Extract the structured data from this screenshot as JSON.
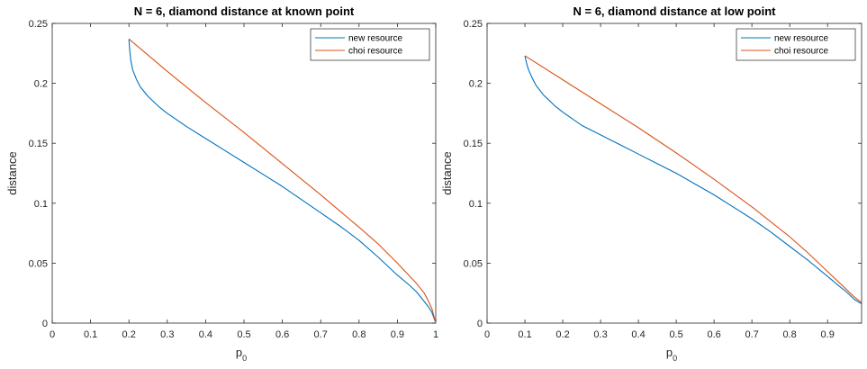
{
  "chart_data": [
    {
      "type": "line",
      "title": "N = 6, diamond distance at known point",
      "xlabel": "p",
      "xlabel_sub": "0",
      "ylabel": "distance",
      "xlim": [
        0,
        1
      ],
      "ylim": [
        0,
        0.25
      ],
      "xticks": [
        0,
        0.1,
        0.2,
        0.3,
        0.4,
        0.5,
        0.6,
        0.7,
        0.8,
        0.9,
        1
      ],
      "xtick_labels": [
        "0",
        "0.1",
        "0.2",
        "0.3",
        "0.4",
        "0.5",
        "0.6",
        "0.7",
        "0.8",
        "0.9",
        "1"
      ],
      "yticks": [
        0,
        0.05,
        0.1,
        0.15,
        0.2,
        0.25
      ],
      "ytick_labels": [
        "0",
        "0.05",
        "0.1",
        "0.15",
        "0.2",
        "0.25"
      ],
      "grid": false,
      "legend_position": "top-right",
      "series": [
        {
          "name": "new resource",
          "color": "#0072BD",
          "x": [
            0.2,
            0.202,
            0.205,
            0.21,
            0.22,
            0.23,
            0.25,
            0.28,
            0.3,
            0.35,
            0.4,
            0.45,
            0.5,
            0.55,
            0.6,
            0.65,
            0.7,
            0.75,
            0.8,
            0.85,
            0.9,
            0.93,
            0.95,
            0.97,
            0.98,
            0.99,
            1.0
          ],
          "y": [
            0.237,
            0.228,
            0.219,
            0.211,
            0.203,
            0.197,
            0.189,
            0.18,
            0.175,
            0.164,
            0.154,
            0.144,
            0.134,
            0.124,
            0.114,
            0.103,
            0.092,
            0.081,
            0.069,
            0.055,
            0.04,
            0.032,
            0.026,
            0.018,
            0.014,
            0.009,
            0.0
          ]
        },
        {
          "name": "choi resource",
          "color": "#D95319",
          "x": [
            0.2,
            0.3,
            0.4,
            0.5,
            0.6,
            0.7,
            0.8,
            0.85,
            0.9,
            0.95,
            0.97,
            0.98,
            0.99,
            1.0
          ],
          "y": [
            0.237,
            0.21,
            0.184,
            0.159,
            0.133,
            0.107,
            0.08,
            0.066,
            0.05,
            0.033,
            0.025,
            0.019,
            0.012,
            0.0
          ]
        }
      ]
    },
    {
      "type": "line",
      "title": "N = 6, diamond distance at low point",
      "xlabel": "p",
      "xlabel_sub": "0",
      "ylabel": "distance",
      "xlim": [
        0,
        0.99
      ],
      "ylim": [
        0,
        0.25
      ],
      "xticks": [
        0,
        0.1,
        0.2,
        0.3,
        0.4,
        0.5,
        0.6,
        0.7,
        0.8,
        0.9
      ],
      "xtick_labels": [
        "0",
        "0.1",
        "0.2",
        "0.3",
        "0.4",
        "0.5",
        "0.6",
        "0.7",
        "0.8",
        "0.9"
      ],
      "yticks": [
        0,
        0.05,
        0.1,
        0.15,
        0.2,
        0.25
      ],
      "ytick_labels": [
        "0",
        "0.05",
        "0.1",
        "0.15",
        "0.2",
        "0.25"
      ],
      "grid": false,
      "legend_position": "top-right",
      "series": [
        {
          "name": "new resource",
          "color": "#0072BD",
          "x": [
            0.1,
            0.105,
            0.11,
            0.12,
            0.13,
            0.15,
            0.18,
            0.2,
            0.25,
            0.3,
            0.35,
            0.4,
            0.45,
            0.5,
            0.55,
            0.6,
            0.65,
            0.7,
            0.75,
            0.8,
            0.85,
            0.9,
            0.93,
            0.95,
            0.97,
            0.99
          ],
          "y": [
            0.223,
            0.216,
            0.211,
            0.204,
            0.198,
            0.19,
            0.181,
            0.176,
            0.165,
            0.157,
            0.149,
            0.141,
            0.133,
            0.125,
            0.116,
            0.107,
            0.097,
            0.087,
            0.076,
            0.064,
            0.052,
            0.039,
            0.031,
            0.026,
            0.02,
            0.016
          ]
        },
        {
          "name": "choi resource",
          "color": "#D95319",
          "x": [
            0.1,
            0.2,
            0.3,
            0.4,
            0.5,
            0.6,
            0.7,
            0.8,
            0.85,
            0.9,
            0.93,
            0.95,
            0.97,
            0.99
          ],
          "y": [
            0.223,
            0.203,
            0.183,
            0.163,
            0.142,
            0.12,
            0.097,
            0.072,
            0.058,
            0.043,
            0.034,
            0.028,
            0.022,
            0.017
          ]
        }
      ]
    }
  ]
}
